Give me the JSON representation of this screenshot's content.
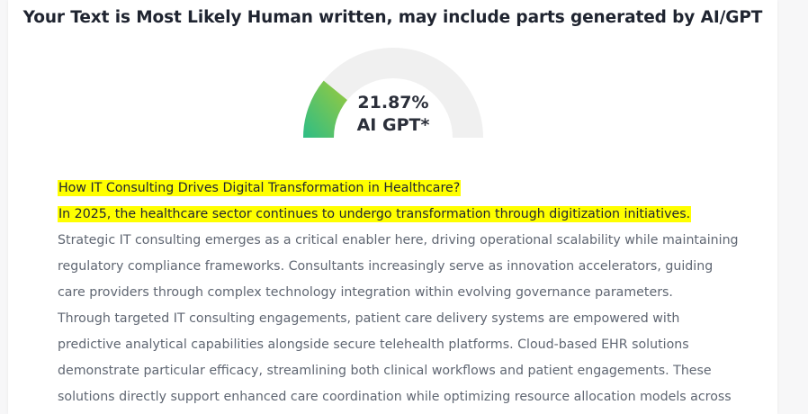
{
  "result": {
    "title": "Your Text is Most Likely Human written, may include parts generated by AI/GPT"
  },
  "gauge": {
    "percent_text": "21.87%",
    "label": "AI GPT*",
    "value_fraction": 0.2187,
    "track_color": "#f0f0f0",
    "fill_gradient": [
      "#2dbd86",
      "#9cca3c"
    ]
  },
  "highlight_color": "#ffff00",
  "analyzed_text": {
    "lines": [
      {
        "text": "How IT Consulting Drives Digital Transformation in Healthcare?",
        "highlighted": true
      },
      {
        "text": "In 2025, the healthcare sector continues to undergo transformation through digitization initiatives.",
        "highlighted": true
      },
      {
        "text": "Strategic IT consulting emerges as a critical enabler here, driving operational scalability while maintaining",
        "highlighted": false
      },
      {
        "text": "regulatory compliance frameworks. Consultants increasingly serve as innovation accelerators, guiding",
        "highlighted": false
      },
      {
        "text": "care providers through complex technology integration within evolving governance parameters.",
        "highlighted": false
      },
      {
        "text": "Through targeted IT consulting engagements, patient care delivery systems are empowered with",
        "highlighted": false
      },
      {
        "text": "predictive analytical capabilities alongside secure telehealth platforms. Cloud-based EHR solutions",
        "highlighted": false
      },
      {
        "text": "demonstrate particular efficacy, streamlining both clinical workflows and patient engagements. These",
        "highlighted": false
      },
      {
        "text": "solutions directly support enhanced care coordination while optimizing resource allocation models across",
        "highlighted": false
      }
    ]
  }
}
